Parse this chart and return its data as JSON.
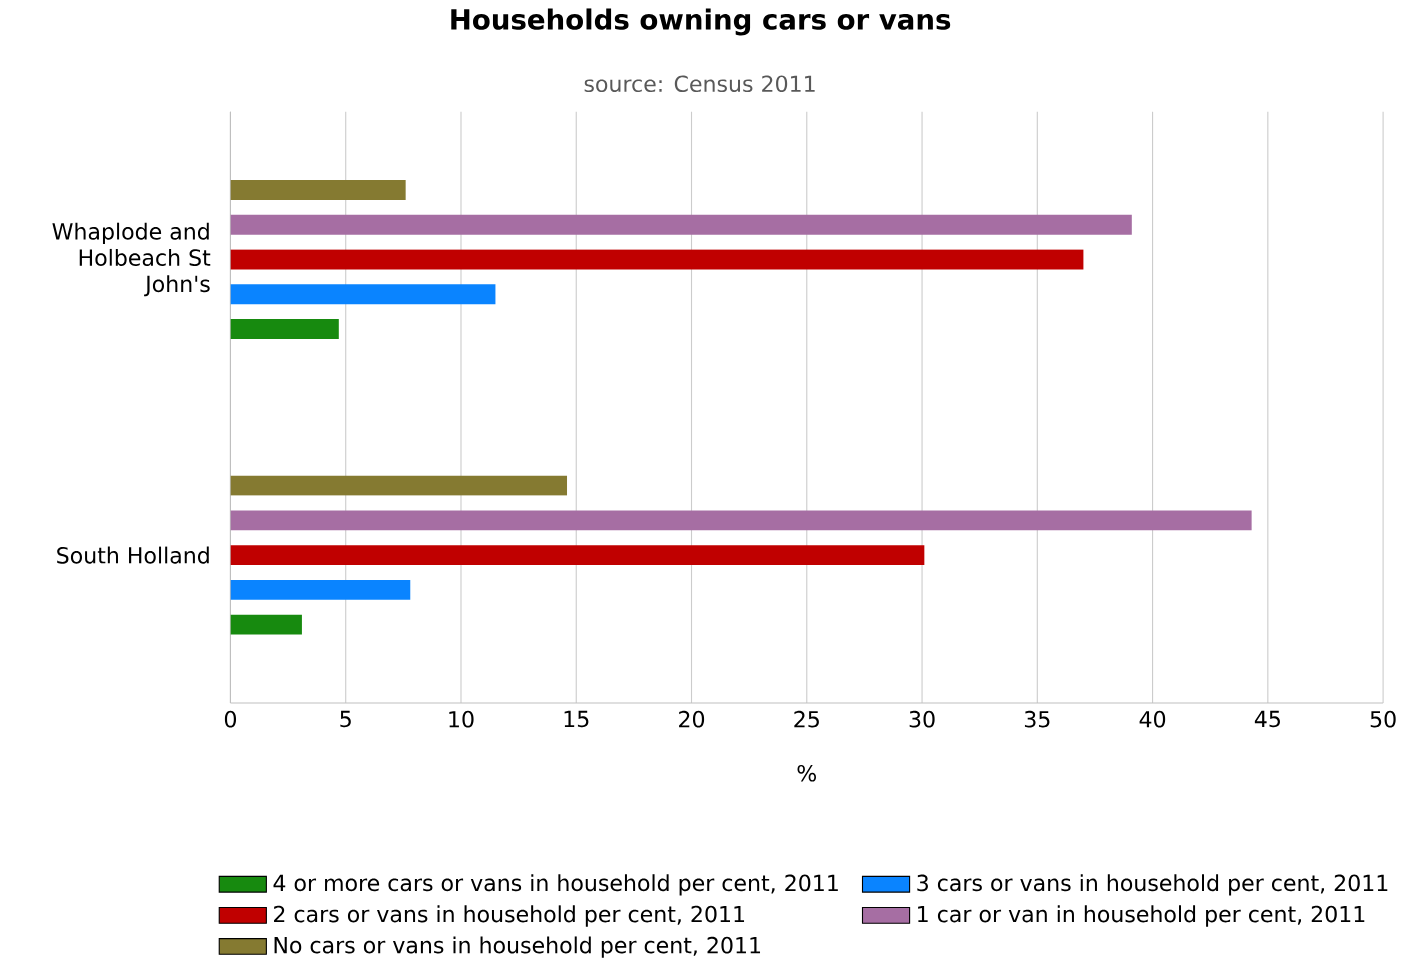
{
  "chart_data": {
    "type": "bar",
    "orientation": "horizontal",
    "title": "Households owning cars or vans",
    "subtitle": "source: Census 2011",
    "xlabel": "%",
    "categories": [
      "Whaplode and Holbeach St John's",
      "South Holland"
    ],
    "series": [
      {
        "name": "4 or more cars or vans in household per cent, 2011",
        "color": "#178a0f",
        "values": [
          4.7,
          3.1
        ]
      },
      {
        "name": "3 cars or vans in household per cent, 2011",
        "color": "#0a84ff",
        "values": [
          11.5,
          7.8
        ]
      },
      {
        "name": "2 cars or vans in household per cent, 2011",
        "color": "#c00000",
        "values": [
          37.0,
          30.1
        ]
      },
      {
        "name": "1 car or van in household per cent, 2011",
        "color": "#a66ea3",
        "values": [
          39.1,
          44.3
        ]
      },
      {
        "name": "No cars or vans in household per cent, 2011",
        "color": "#857a31",
        "values": [
          7.6,
          14.6
        ]
      }
    ],
    "xlim": [
      0,
      50
    ],
    "xticks": [
      0,
      5,
      10,
      15,
      20,
      25,
      30,
      35,
      40,
      45,
      50
    ],
    "grid": "x",
    "legend": "bottom"
  }
}
